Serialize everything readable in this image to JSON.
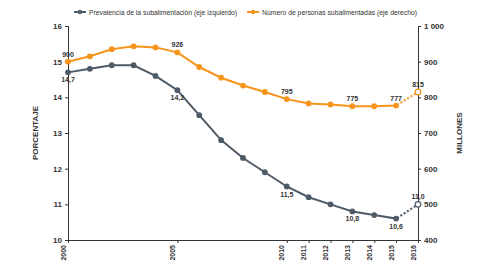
{
  "chart_data": {
    "type": "line",
    "x": [
      2000,
      2001,
      2002,
      2003,
      2004,
      2005,
      2006,
      2007,
      2008,
      2009,
      2010,
      2011,
      2012,
      2013,
      2014,
      2015,
      2016
    ],
    "xlim": [
      2000,
      2016
    ],
    "xticks": [
      2000,
      2005,
      2010,
      2011,
      2012,
      2013,
      2014,
      2015,
      2016
    ],
    "ylim": [
      10,
      16
    ],
    "yticks": [
      10,
      11,
      12,
      13,
      14,
      15,
      16
    ],
    "y2lim": [
      400,
      1000
    ],
    "y2ticks": [
      400,
      500,
      600,
      700,
      800,
      900,
      {
        "value": 1000,
        "label": "1 000"
      }
    ],
    "y_label": "PORCENTAJE",
    "y2_label": "MILLONES",
    "legend": "top-left",
    "grid": false,
    "data_labels": true,
    "series": [
      {
        "name": "Prevalencia de la subalimentación (eje izquierdo)",
        "color": "#4e5b67",
        "marker": "circle",
        "axis": "y",
        "values": [
          14.7,
          14.8,
          14.9,
          14.9,
          14.6,
          14.2,
          13.5,
          12.8,
          12.3,
          11.9,
          11.5,
          11.2,
          11.0,
          10.8,
          10.7,
          10.6,
          11.0
        ],
        "value_labels": [
          "14,7",
          null,
          null,
          null,
          null,
          "14,2",
          null,
          null,
          null,
          null,
          "11,5",
          null,
          null,
          "10,8",
          null,
          "10,6",
          "11,0"
        ]
      },
      {
        "name": "Número de personas subalimentadas (eje derecho)",
        "color": "#f7941d",
        "marker": "circle",
        "axis": "y2",
        "values": [
          900,
          915,
          935,
          943,
          940,
          926,
          885,
          855,
          833,
          815,
          795,
          783,
          780,
          775,
          775,
          777,
          815
        ],
        "value_labels": [
          "900",
          null,
          null,
          null,
          null,
          "926",
          null,
          null,
          null,
          null,
          "795",
          null,
          null,
          "775",
          null,
          "777",
          "815"
        ]
      }
    ]
  }
}
